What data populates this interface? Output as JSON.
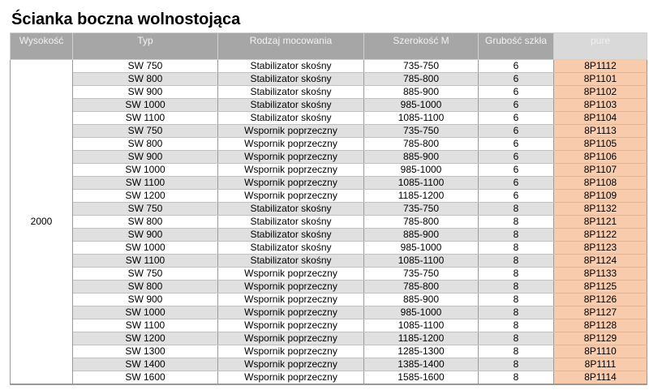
{
  "title": "Ścianka boczna wolnostojąca",
  "headers": [
    "Wysokość",
    "Typ",
    "Rodzaj mocowania",
    "Szerokość M",
    "Grubość szkła",
    "pure"
  ],
  "height_value": "2000",
  "rows": [
    [
      "SW 750",
      "Stabilizator skośny",
      "735-750",
      "6",
      "8P1112"
    ],
    [
      "SW 800",
      "Stabilizator skośny",
      "785-800",
      "6",
      "8P1101"
    ],
    [
      "SW 900",
      "Stabilizator skośny",
      "885-900",
      "6",
      "8P1102"
    ],
    [
      "SW 1000",
      "Stabilizator skośny",
      "985-1000",
      "6",
      "8P1103"
    ],
    [
      "SW 1100",
      "Stabilizator skośny",
      "1085-1100",
      "6",
      "8P1104"
    ],
    [
      "SW 750",
      "Wspornik poprzeczny",
      "735-750",
      "6",
      "8P1113"
    ],
    [
      "SW 800",
      "Wspornik poprzeczny",
      "785-800",
      "6",
      "8P1105"
    ],
    [
      "SW 900",
      "Wspornik poprzeczny",
      "885-900",
      "6",
      "8P1106"
    ],
    [
      "SW 1000",
      "Wspornik poprzeczny",
      "985-1000",
      "6",
      "8P1107"
    ],
    [
      "SW 1100",
      "Wspornik poprzeczny",
      "1085-1100",
      "6",
      "8P1108"
    ],
    [
      "SW 1200",
      "Wspornik poprzeczny",
      "1185-1200",
      "6",
      "8P1109"
    ],
    [
      "SW 750",
      "Stabilizator skośny",
      "735-750",
      "8",
      "8P1132"
    ],
    [
      "SW 800",
      "Stabilizator skośny",
      "785-800",
      "8",
      "8P1121"
    ],
    [
      "SW 900",
      "Stabilizator skośny",
      "885-900",
      "8",
      "8P1122"
    ],
    [
      "SW 1000",
      "Stabilizator skośny",
      "985-1000",
      "8",
      "8P1123"
    ],
    [
      "SW 1100",
      "Stabilizator skośny",
      "1085-1100",
      "8",
      "8P1124"
    ],
    [
      "SW 750",
      "Wspornik poprzeczny",
      "735-750",
      "8",
      "8P1133"
    ],
    [
      "SW 800",
      "Wspornik poprzeczny",
      "785-800",
      "8",
      "8P1125"
    ],
    [
      "SW 900",
      "Wspornik poprzeczny",
      "885-900",
      "8",
      "8P1126"
    ],
    [
      "SW 1000",
      "Wspornik poprzeczny",
      "985-1000",
      "8",
      "8P1127"
    ],
    [
      "SW 1100",
      "Wspornik poprzeczny",
      "1085-1100",
      "8",
      "8P1128"
    ],
    [
      "SW 1200",
      "Wspornik poprzeczny",
      "1185-1200",
      "8",
      "8P1129"
    ],
    [
      "SW 1300",
      "Wspornik poprzeczny",
      "1285-1300",
      "8",
      "8P1110"
    ],
    [
      "SW 1400",
      "Wspornik poprzeczny",
      "1385-1400",
      "8",
      "8P1111"
    ],
    [
      "SW 1600",
      "Wspornik poprzeczny",
      "1585-1600",
      "8",
      "8P1114"
    ]
  ],
  "colors": {
    "header_bg": "#a6a6a6",
    "pure_header_bg": "#d9d9d9",
    "pure_cell_bg": "#f8cbad",
    "alt_row_bg": "#e0e0e0"
  }
}
